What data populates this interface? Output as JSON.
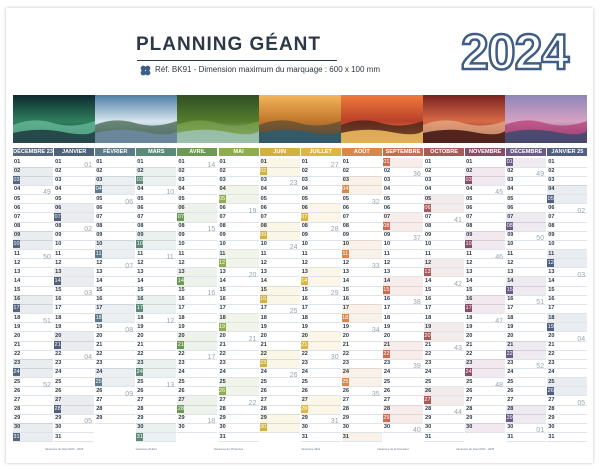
{
  "header": {
    "title": "PLANNING GÉANT",
    "reference": "Réf. BK91 - Dimension maximum du marquage : 600 x 100 mm",
    "year": "2024"
  },
  "photos": [
    {
      "scene": "aurora-rock-arch",
      "colors": [
        "#0d2a2f",
        "#2f7f5d",
        "#6dc3a3",
        "#1d3a40"
      ]
    },
    {
      "scene": "mountain-lake",
      "colors": [
        "#4f7fa7",
        "#d7e6ef",
        "#3c5c44",
        "#6e8aa3"
      ]
    },
    {
      "scene": "forest-river",
      "colors": [
        "#2f4f23",
        "#567d2d",
        "#7aa24b",
        "#9dc3b5"
      ]
    },
    {
      "scene": "coastal-arch-sunset",
      "colors": [
        "#f4b55a",
        "#c0762c",
        "#5d4a2d",
        "#2d5b70"
      ]
    },
    {
      "scene": "savanna-acacia-sunset",
      "colors": [
        "#f07a3a",
        "#b9402a",
        "#3b1e15",
        "#f2c05f"
      ]
    },
    {
      "scene": "taj-mahal-arch",
      "colors": [
        "#7b2220",
        "#d76b47",
        "#e9b08b",
        "#3e1212"
      ]
    },
    {
      "scene": "lupin-lake-dusk",
      "colors": [
        "#8e86b9",
        "#d6a2c2",
        "#b83a73",
        "#3b4a6f"
      ]
    }
  ],
  "months": [
    {
      "label": "DÉCEMBRE 23",
      "color": "#55687e",
      "days": 31,
      "first": 4
    },
    {
      "label": "JANVIER",
      "color": "#4f6278",
      "days": 31,
      "first": 0
    },
    {
      "label": "FÉVRIER",
      "color": "#5d7a8a",
      "days": 29,
      "first": 3
    },
    {
      "label": "MARS",
      "color": "#5b8a7a",
      "days": 31,
      "first": 4
    },
    {
      "label": "AVRIL",
      "color": "#6c9a55",
      "days": 30,
      "first": 0
    },
    {
      "label": "MAI",
      "color": "#8eae4d",
      "days": 31,
      "first": 2
    },
    {
      "label": "JUIN",
      "color": "#d2b23f",
      "days": 30,
      "first": 5
    },
    {
      "label": "JUILLET",
      "color": "#ddb642",
      "days": 31,
      "first": 0
    },
    {
      "label": "AOÛT",
      "color": "#d98849",
      "days": 31,
      "first": 3
    },
    {
      "label": "SEPTEMBRE",
      "color": "#c96c50",
      "days": 30,
      "first": 6
    },
    {
      "label": "OCTOBRE",
      "color": "#a75a57",
      "days": 31,
      "first": 1
    },
    {
      "label": "NOVEMBRE",
      "color": "#8a4d68",
      "days": 30,
      "first": 4
    },
    {
      "label": "DÉCEMBRE",
      "color": "#6b5b87",
      "days": 31,
      "first": 6
    },
    {
      "label": "JANVIER 25",
      "color": "#4e5f80",
      "days": 31,
      "first": 2
    }
  ],
  "footers": [
    "Vacances de Noël 2023 - 2024",
    "Vacances d'Hiver",
    "Vacances de Printemps",
    "Vacances d'Été",
    "Vacances de la Toussaint",
    "Vacances de Noël 2024 - 2025"
  ]
}
